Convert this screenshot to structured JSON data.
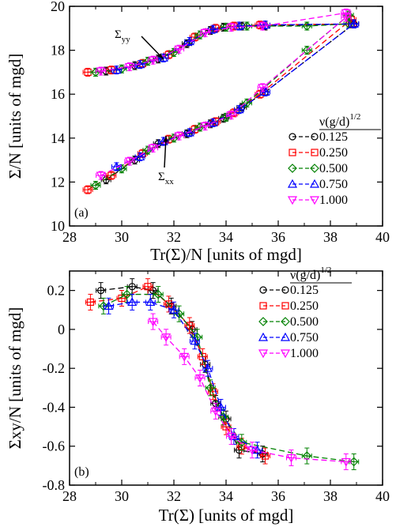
{
  "chart_data": [
    {
      "type": "line",
      "panel_label": "(a)",
      "xlabel": "Tr(Σ)/N [units of mgd]",
      "ylabel": "Σ/N [units of mgd]",
      "xlim": [
        28,
        40
      ],
      "ylim": [
        10,
        20
      ],
      "xticks": [
        28,
        30,
        32,
        34,
        36,
        38,
        40
      ],
      "yticks": [
        10,
        12,
        14,
        16,
        18,
        20
      ],
      "grid": false,
      "legend_title": "ν(g/d)^1/2",
      "legend_position": "right",
      "annotations": [
        {
          "text": "Σyy",
          "points_to": [
            31.6,
            17.6
          ]
        },
        {
          "text": "Σxx",
          "points_to": [
            31.7,
            14.1
          ]
        }
      ],
      "series": [
        {
          "name": "0.125",
          "color": "#000000",
          "marker": "circle",
          "x": [
            29.4,
            30.5,
            31.4,
            32.5,
            33.4,
            33.9,
            34.6,
            35.5,
            38.9
          ],
          "y_yy": [
            17.05,
            17.3,
            17.6,
            18.3,
            18.9,
            19.05,
            19.1,
            19.1,
            19.2
          ],
          "y_xx": [
            12.1,
            13.0,
            13.75,
            14.2,
            14.65,
            14.9,
            15.4,
            16.1,
            19.2
          ]
        },
        {
          "name": "0.250",
          "color": "#ff0000",
          "marker": "square",
          "x": [
            28.7,
            29.6,
            30.8,
            31.8,
            32.8,
            33.6,
            34.3,
            35.3,
            38.8
          ],
          "y_yy": [
            17.0,
            17.1,
            17.4,
            17.8,
            18.6,
            19.0,
            19.1,
            19.15,
            19.2
          ],
          "y_xx": [
            11.65,
            12.3,
            13.3,
            13.95,
            14.4,
            14.75,
            15.15,
            16.0,
            19.4
          ]
        },
        {
          "name": "0.500",
          "color": "#008000",
          "marker": "diamond",
          "x": [
            29.0,
            30.0,
            31.0,
            32.0,
            33.0,
            34.0,
            34.8,
            37.1,
            38.7
          ],
          "y_yy": [
            17.0,
            17.15,
            17.5,
            17.9,
            18.7,
            19.05,
            19.1,
            19.1,
            19.2
          ],
          "y_xx": [
            11.85,
            12.6,
            13.45,
            14.0,
            14.5,
            14.95,
            15.6,
            18.0,
            19.6
          ]
        },
        {
          "name": "0.750",
          "color": "#0000ff",
          "marker": "triangle-up",
          "x": [
            29.8,
            30.7,
            31.6,
            32.6,
            33.5,
            34.5,
            35.5,
            38.9
          ],
          "y_yy": [
            17.1,
            17.35,
            17.65,
            18.4,
            18.95,
            19.1,
            19.15,
            19.2
          ],
          "y_xx": [
            12.7,
            13.15,
            13.85,
            14.25,
            14.7,
            15.3,
            16.1,
            19.2
          ]
        },
        {
          "name": "1.000",
          "color": "#ff00ff",
          "marker": "triangle-down",
          "x": [
            29.2,
            30.3,
            31.2,
            32.2,
            33.2,
            34.2,
            35.4,
            38.6
          ],
          "y_yy": [
            17.05,
            17.25,
            17.55,
            18.05,
            18.8,
            19.05,
            19.1,
            19.7
          ],
          "y_xx": [
            12.3,
            12.95,
            13.55,
            14.1,
            14.55,
            15.05,
            16.3,
            19.5
          ]
        }
      ]
    },
    {
      "type": "line",
      "panel_label": "(b)",
      "xlabel": "Tr(Σ) [units of mgd]",
      "ylabel": "Σxy/N [units of mgd]",
      "xlim": [
        28,
        40
      ],
      "ylim": [
        -0.8,
        0.3
      ],
      "xticks": [
        28,
        30,
        32,
        34,
        36,
        38,
        40
      ],
      "yticks": [
        -0.8,
        -0.6,
        -0.4,
        -0.2,
        0,
        0.2
      ],
      "ytick_labels": [
        "-0.8",
        "-0.6",
        "-0.4",
        "-0.2",
        "0",
        "0.2"
      ],
      "grid": false,
      "legend_title": "ν(g/d)^1/2",
      "legend_position": "top-right",
      "series": [
        {
          "name": "0.125",
          "color": "#000000",
          "marker": "circle",
          "x": [
            29.2,
            30.4,
            31.2,
            31.9,
            32.7,
            33.2,
            33.6,
            34.0,
            34.5,
            35.4
          ],
          "y": [
            0.2,
            0.22,
            0.2,
            0.12,
            0.0,
            -0.18,
            -0.38,
            -0.46,
            -0.62,
            -0.64
          ]
        },
        {
          "name": "0.250",
          "color": "#ff0000",
          "marker": "square",
          "x": [
            28.8,
            30.0,
            31.0,
            31.8,
            32.6,
            33.1,
            33.5,
            34.0,
            34.6,
            35.5
          ],
          "y": [
            0.14,
            0.16,
            0.22,
            0.13,
            0.02,
            -0.14,
            -0.32,
            -0.5,
            -0.6,
            -0.65
          ]
        },
        {
          "name": "0.500",
          "color": "#008000",
          "marker": "diamond",
          "x": [
            29.3,
            30.2,
            31.4,
            32.2,
            32.9,
            33.4,
            33.9,
            34.6,
            37.1,
            38.9
          ],
          "y": [
            0.12,
            0.18,
            0.18,
            0.08,
            -0.04,
            -0.3,
            -0.45,
            -0.58,
            -0.65,
            -0.68
          ]
        },
        {
          "name": "0.750",
          "color": "#0000ff",
          "marker": "triangle-up",
          "x": [
            29.5,
            30.4,
            31.1,
            32.0,
            32.8,
            33.3,
            33.8,
            34.3,
            35.2
          ],
          "y": [
            0.12,
            0.14,
            0.14,
            0.1,
            -0.06,
            -0.2,
            -0.4,
            -0.55,
            -0.62
          ]
        },
        {
          "name": "1.000",
          "color": "#ff00ff",
          "marker": "triangle-down",
          "x": [
            31.2,
            31.7,
            32.4,
            33.0,
            33.6,
            34.2,
            35.0,
            36.5,
            38.6
          ],
          "y": [
            0.04,
            -0.04,
            -0.14,
            -0.25,
            -0.42,
            -0.55,
            -0.62,
            -0.66,
            -0.68
          ]
        }
      ]
    }
  ]
}
